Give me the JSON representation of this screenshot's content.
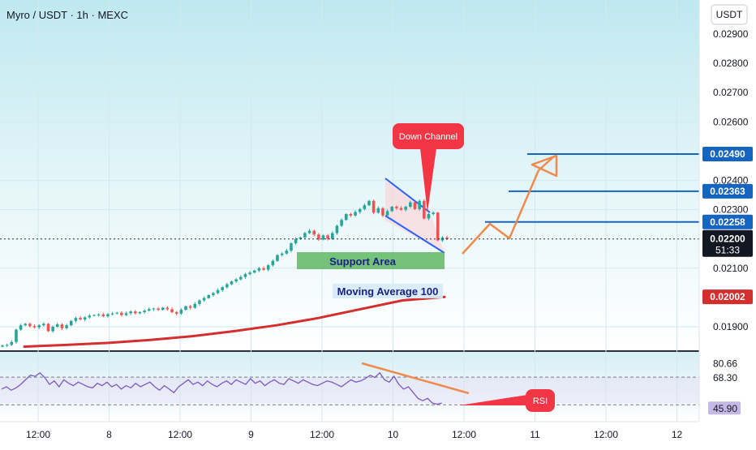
{
  "header": {
    "symbol_title": "Myro / USDT · 1h · MEXC"
  },
  "currency_button": "USDT",
  "colors": {
    "up": "#26a69a",
    "down": "#ef5350",
    "ma": "#d32f2f",
    "blue_level": "#1565c0",
    "orange": "#f08a4b",
    "channel": "#2962ff",
    "support": "#4caf50",
    "chart_bg_top": "#e1f5f8",
    "rsi_line": "#7e57c2"
  },
  "chart_data": [
    {
      "type": "candlestick",
      "title": "Myro / USDT · 1h · MEXC",
      "x_ticks": [
        "12:00",
        "8",
        "12:00",
        "9",
        "12:00",
        "10",
        "12:00",
        "11",
        "12:00",
        "12"
      ],
      "y_ticks": [
        "0.02900",
        "0.02800",
        "0.02700",
        "0.02600",
        "0.02400",
        "0.02300",
        "0.02100",
        "0.01900"
      ],
      "ylim": [
        0.0183,
        0.0296
      ],
      "current_price": "0.02200",
      "countdown": "51:33",
      "ma_label_value": "0.02002",
      "levels": [
        "0.02490",
        "0.02363",
        "0.02258"
      ],
      "annotations": {
        "down_channel": "Down Channel",
        "support_area": "Support Area",
        "moving_average": "Moving Average 100"
      },
      "closes": [
        0.01836,
        0.01838,
        0.01848,
        0.0189,
        0.01905,
        0.0191,
        0.01902,
        0.01898,
        0.01905,
        0.0191,
        0.01885,
        0.019,
        0.01908,
        0.01895,
        0.01905,
        0.0192,
        0.0193,
        0.01925,
        0.01932,
        0.01938,
        0.0194,
        0.01942,
        0.01936,
        0.01943,
        0.01945,
        0.01948,
        0.0194,
        0.01946,
        0.01952,
        0.01946,
        0.0195,
        0.01955,
        0.0196,
        0.01962,
        0.01958,
        0.01965,
        0.0196,
        0.0195,
        0.01945,
        0.01958,
        0.0197,
        0.01965,
        0.01978,
        0.0199,
        0.01998,
        0.02008,
        0.02015,
        0.02025,
        0.02035,
        0.02045,
        0.02055,
        0.02062,
        0.0207,
        0.0208,
        0.02085,
        0.02092,
        0.021,
        0.02095,
        0.0211,
        0.02125,
        0.02145,
        0.0215,
        0.0216,
        0.02185,
        0.022,
        0.02205,
        0.0222,
        0.02228,
        0.02215,
        0.02198,
        0.02212,
        0.022,
        0.0222,
        0.02245,
        0.02265,
        0.02285,
        0.0228,
        0.02292,
        0.02302,
        0.02315,
        0.0233,
        0.0229,
        0.02305,
        0.0228,
        0.02295,
        0.0231,
        0.02305,
        0.023,
        0.0231,
        0.02325,
        0.02302,
        0.0233,
        0.0227,
        0.02285,
        0.0229,
        0.02195,
        0.02205,
        0.022
      ],
      "ma": [
        0.01832,
        0.01838,
        0.01845,
        0.01855,
        0.01868,
        0.01885,
        0.01905,
        0.0193,
        0.0196,
        0.0199,
        0.02002
      ],
      "rsi": {
        "levels": [
          "80.66",
          "68.30",
          "45.90"
        ],
        "annotation": "RSI",
        "values": [
          58,
          60,
          57,
          59,
          62,
          66,
          70,
          69,
          72,
          68,
          62,
          65,
          60,
          66,
          63,
          61,
          64,
          62,
          60,
          59,
          63,
          61,
          64,
          60,
          62,
          58,
          61,
          59,
          63,
          60,
          62,
          64,
          60,
          57,
          61,
          58,
          55,
          60,
          63,
          66,
          62,
          64,
          61,
          65,
          62,
          60,
          63,
          65,
          62,
          66,
          64,
          62,
          67,
          63,
          65,
          61,
          64,
          66,
          63,
          62,
          67,
          65,
          63,
          66,
          64,
          62,
          61,
          63,
          65,
          64,
          62,
          60,
          63,
          66,
          64,
          65,
          67,
          70,
          68,
          72,
          66,
          64,
          69,
          62,
          58,
          60,
          55,
          50,
          48,
          50,
          46,
          45,
          46
        ]
      }
    }
  ]
}
